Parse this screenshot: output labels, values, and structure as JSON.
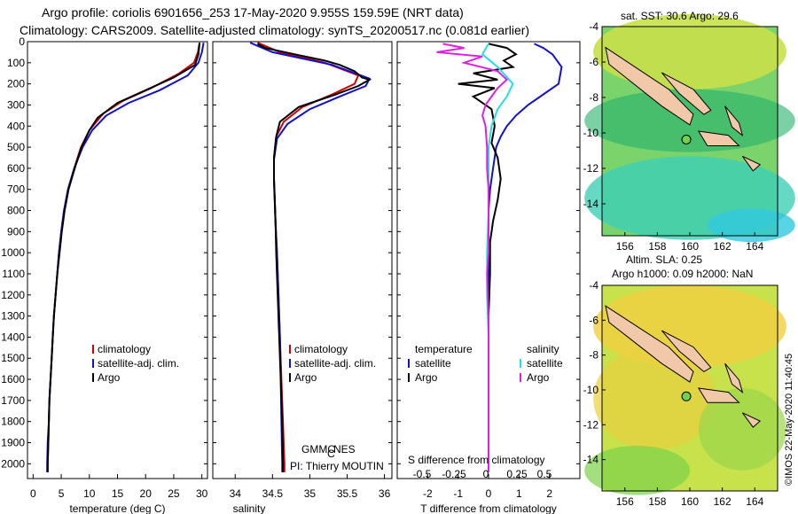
{
  "header": {
    "line1": "Argo profile: coriolis 6901656_253 17-May-2020 9.955S 159.59E (NRT data)",
    "line2": "Climatology: CARS2009. Satellite-adjusted climatology: synTS_20200517.nc (0.081d earlier)"
  },
  "colors": {
    "climatology": "#d00000",
    "satellite": "#1010d0",
    "argo": "#000000",
    "argo_s": "#e020e0",
    "satellite_s": "#20e0e0"
  },
  "legend": {
    "climatology": "climatology",
    "satellite_adj": "satellite-adj. clim.",
    "argo": "Argo",
    "temperature": "temperature",
    "salinity": "salinity",
    "satellite": "satellite"
  },
  "credits": {
    "gmmc": "GMMC",
    "gmmc_sub": "C",
    "gmmc_end": "NES",
    "pi": "PI: Thierry MOUTIN"
  },
  "s_diff_label": "S difference from climatology",
  "s_diff_ticks": [
    "-0.5",
    "-0.25",
    "0",
    "0.25",
    "0.5"
  ],
  "map_top": {
    "title": "sat. SST: 30.6 Argo: 29.6"
  },
  "map_bottom": {
    "title1": "Altim. SLA: 0.25",
    "title2": "Argo h1000: 0.09 h2000: NaN"
  },
  "map_axes": {
    "lat_ticks": [
      "-4",
      "-6",
      "-8",
      "-10",
      "-12",
      "-14"
    ],
    "lon_ticks": [
      "156",
      "158",
      "160",
      "162",
      "164"
    ]
  },
  "footer": "©IMOS 22-May-2020 11:40:45",
  "chart_data": [
    {
      "type": "line",
      "xlabel": "temperature (deg C)",
      "ylabel": "",
      "xlim": [
        -1,
        31
      ],
      "ylim": [
        2070,
        0
      ],
      "xticks": [
        0,
        5,
        10,
        15,
        20,
        25,
        30
      ],
      "yticks": [
        0,
        100,
        200,
        300,
        400,
        500,
        600,
        700,
        800,
        900,
        1000,
        1100,
        1200,
        1300,
        1400,
        1500,
        1600,
        1700,
        1800,
        1900,
        2000
      ],
      "series": [
        {
          "name": "climatology",
          "color": "#d00000",
          "points": [
            [
              29.6,
              5
            ],
            [
              29.3,
              50
            ],
            [
              28.6,
              100
            ],
            [
              26,
              150
            ],
            [
              21,
              220
            ],
            [
              16,
              280
            ],
            [
              12.5,
              340
            ],
            [
              10,
              420
            ],
            [
              8.5,
              500
            ],
            [
              7.3,
              600
            ],
            [
              6.2,
              700
            ],
            [
              5.5,
              800
            ],
            [
              5,
              900
            ],
            [
              4.6,
              1000
            ],
            [
              4.3,
              1100
            ],
            [
              4,
              1200
            ],
            [
              3.7,
              1300
            ],
            [
              3.5,
              1400
            ],
            [
              3.3,
              1500
            ],
            [
              3.1,
              1600
            ],
            [
              2.9,
              1700
            ],
            [
              2.8,
              1800
            ],
            [
              2.7,
              1900
            ],
            [
              2.6,
              2000
            ],
            [
              2.6,
              2040
            ]
          ]
        },
        {
          "name": "satellite-adj. clim.",
          "color": "#1010d0",
          "points": [
            [
              30.3,
              5
            ],
            [
              30,
              50
            ],
            [
              29.4,
              100
            ],
            [
              27.5,
              160
            ],
            [
              22.5,
              230
            ],
            [
              17,
              290
            ],
            [
              13,
              350
            ],
            [
              10.5,
              420
            ],
            [
              8.8,
              500
            ],
            [
              7.3,
              600
            ],
            [
              6.2,
              700
            ],
            [
              5.5,
              800
            ],
            [
              5,
              900
            ],
            [
              4.6,
              1000
            ],
            [
              4.3,
              1100
            ],
            [
              4,
              1200
            ],
            [
              3.7,
              1300
            ],
            [
              3.5,
              1400
            ],
            [
              3.3,
              1500
            ],
            [
              3.1,
              1600
            ],
            [
              2.9,
              1700
            ],
            [
              2.8,
              1800
            ],
            [
              2.6,
              1900
            ],
            [
              2.5,
              2000
            ],
            [
              2.5,
              2040
            ]
          ]
        },
        {
          "name": "Argo",
          "color": "#000000",
          "points": [
            [
              29.6,
              5
            ],
            [
              29.4,
              60
            ],
            [
              28.8,
              110
            ],
            [
              25,
              170
            ],
            [
              20,
              230
            ],
            [
              15,
              290
            ],
            [
              11.5,
              360
            ],
            [
              10,
              420
            ],
            [
              8.6,
              500
            ],
            [
              7.4,
              600
            ],
            [
              6.3,
              700
            ],
            [
              5.6,
              800
            ],
            [
              5.1,
              900
            ],
            [
              4.7,
              1000
            ],
            [
              4.3,
              1100
            ],
            [
              4,
              1200
            ],
            [
              3.7,
              1300
            ],
            [
              3.5,
              1400
            ],
            [
              3.3,
              1500
            ],
            [
              3.1,
              1600
            ],
            [
              2.9,
              1700
            ],
            [
              2.8,
              1800
            ],
            [
              2.7,
              1900
            ],
            [
              2.6,
              2000
            ],
            [
              2.6,
              2040
            ]
          ]
        }
      ]
    },
    {
      "type": "line",
      "xlabel": "salinity",
      "ylabel": "",
      "xlim": [
        33.7,
        36.1
      ],
      "ylim": [
        2070,
        0
      ],
      "xticks": [
        34,
        34.5,
        35,
        35.5,
        36
      ],
      "series": [
        {
          "name": "climatology",
          "color": "#d00000",
          "points": [
            [
              34.3,
              5
            ],
            [
              34.6,
              50
            ],
            [
              35.2,
              100
            ],
            [
              35.65,
              160
            ],
            [
              35.6,
              200
            ],
            [
              35.3,
              250
            ],
            [
              34.9,
              310
            ],
            [
              34.65,
              380
            ],
            [
              34.55,
              450
            ],
            [
              34.52,
              550
            ],
            [
              34.52,
              650
            ],
            [
              34.53,
              750
            ],
            [
              34.54,
              850
            ],
            [
              34.56,
              1000
            ],
            [
              34.58,
              1200
            ],
            [
              34.6,
              1400
            ],
            [
              34.62,
              1600
            ],
            [
              34.64,
              1800
            ],
            [
              34.66,
              2000
            ],
            [
              34.66,
              2040
            ]
          ]
        },
        {
          "name": "satellite-adj. clim.",
          "color": "#1010d0",
          "points": [
            [
              34.2,
              5
            ],
            [
              34.5,
              50
            ],
            [
              35.3,
              110
            ],
            [
              35.8,
              175
            ],
            [
              35.75,
              210
            ],
            [
              35.4,
              260
            ],
            [
              35.0,
              320
            ],
            [
              34.7,
              390
            ],
            [
              34.56,
              460
            ],
            [
              34.52,
              560
            ],
            [
              34.52,
              660
            ],
            [
              34.53,
              760
            ],
            [
              34.54,
              860
            ],
            [
              34.56,
              1000
            ],
            [
              34.58,
              1200
            ],
            [
              34.6,
              1400
            ],
            [
              34.61,
              1600
            ],
            [
              34.62,
              1800
            ],
            [
              34.63,
              2000
            ],
            [
              34.63,
              2040
            ]
          ]
        },
        {
          "name": "Argo",
          "color": "#000000",
          "points": [
            [
              34.3,
              10
            ],
            [
              34.4,
              30
            ],
            [
              34.8,
              60
            ],
            [
              35.2,
              90
            ],
            [
              35.4,
              110
            ],
            [
              35.6,
              140
            ],
            [
              35.7,
              170
            ],
            [
              35.8,
              180
            ],
            [
              35.65,
              210
            ],
            [
              35.35,
              250
            ],
            [
              34.85,
              310
            ],
            [
              34.6,
              380
            ],
            [
              34.55,
              450
            ],
            [
              34.52,
              550
            ],
            [
              34.52,
              650
            ],
            [
              34.53,
              750
            ],
            [
              34.54,
              850
            ],
            [
              34.55,
              1000
            ],
            [
              34.57,
              1200
            ],
            [
              34.59,
              1400
            ],
            [
              34.61,
              1600
            ],
            [
              34.63,
              1800
            ],
            [
              34.64,
              2000
            ],
            [
              34.64,
              2040
            ]
          ]
        }
      ]
    },
    {
      "type": "line",
      "xlabel": "T difference from climatology",
      "ylabel": "",
      "xlim": [
        -3,
        3
      ],
      "ylim": [
        2070,
        0
      ],
      "xticks": [
        -2,
        -1,
        0,
        1,
        2
      ],
      "series": [
        {
          "name": "temperature satellite",
          "color": "#1010d0",
          "points": [
            [
              1.5,
              10
            ],
            [
              1.8,
              30
            ],
            [
              2.1,
              60
            ],
            [
              2.4,
              120
            ],
            [
              2.3,
              200
            ],
            [
              1.8,
              250
            ],
            [
              1.3,
              300
            ],
            [
              0.9,
              350
            ],
            [
              0.6,
              400
            ],
            [
              0.4,
              450
            ],
            [
              0.25,
              500
            ],
            [
              0.15,
              600
            ],
            [
              0.05,
              700
            ],
            [
              0,
              800
            ],
            [
              0,
              1000
            ],
            [
              0,
              2040
            ]
          ]
        },
        {
          "name": "temperature Argo",
          "color": "#000000",
          "points": [
            [
              0,
              10
            ],
            [
              0.6,
              30
            ],
            [
              0.9,
              60
            ],
            [
              0.5,
              90
            ],
            [
              0.8,
              120
            ],
            [
              -0.5,
              150
            ],
            [
              0.3,
              180
            ],
            [
              -1,
              200
            ],
            [
              0.2,
              220
            ],
            [
              -0.5,
              260
            ],
            [
              0.1,
              320
            ],
            [
              0.2,
              400
            ],
            [
              0.1,
              480
            ],
            [
              0.3,
              550
            ],
            [
              0.4,
              650
            ],
            [
              0.3,
              750
            ],
            [
              0.15,
              850
            ],
            [
              0.05,
              950
            ],
            [
              0.05,
              1100
            ],
            [
              0,
              1300
            ],
            [
              0,
              2040
            ]
          ]
        },
        {
          "name": "salinity satellite",
          "color": "#20e0e0",
          "points": [
            [
              0,
              10
            ],
            [
              -0.2,
              60
            ],
            [
              0.3,
              120
            ],
            [
              0.8,
              200
            ],
            [
              0.6,
              260
            ],
            [
              0.3,
              320
            ],
            [
              0.1,
              400
            ],
            [
              0,
              500
            ],
            [
              0,
              600
            ],
            [
              0,
              800
            ],
            [
              -0.05,
              1000
            ],
            [
              -0.05,
              1200
            ],
            [
              0,
              1400
            ],
            [
              0,
              2040
            ]
          ]
        },
        {
          "name": "salinity Argo",
          "color": "#e020e0",
          "points": [
            [
              -1.5,
              10
            ],
            [
              -0.8,
              30
            ],
            [
              -1.7,
              50
            ],
            [
              -0.2,
              70
            ],
            [
              -0.8,
              100
            ],
            [
              0.3,
              140
            ],
            [
              0.6,
              180
            ],
            [
              0.3,
              220
            ],
            [
              0.1,
              260
            ],
            [
              -0.1,
              300
            ],
            [
              -0.2,
              350
            ],
            [
              -0.1,
              400
            ],
            [
              -0.05,
              500
            ],
            [
              -0.05,
              600
            ],
            [
              0,
              700
            ],
            [
              0,
              800
            ],
            [
              0,
              1000
            ],
            [
              -0.05,
              1100
            ],
            [
              0,
              1300
            ],
            [
              0,
              2040
            ]
          ]
        }
      ]
    }
  ]
}
